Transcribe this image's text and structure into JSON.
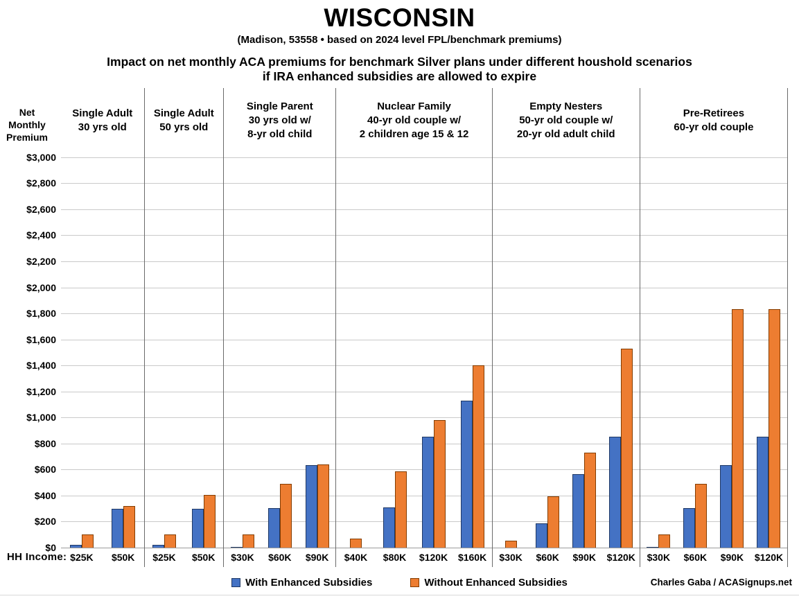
{
  "header": {
    "title": "WISCONSIN",
    "subtitle": "(Madison, 53558 • based on 2024 level FPL/benchmark premiums)",
    "heading_line1": "Impact on net monthly ACA premiums for benchmark Silver plans under different houshold scenarios",
    "heading_line2": "if IRA enhanced subsidies are allowed to expire"
  },
  "chart_data": {
    "type": "bar",
    "y_axis_title": "Net\nMonthly\nPremium",
    "ylim": [
      0,
      3000
    ],
    "ytick_step": 200,
    "ytick_labels": [
      "$3,000",
      "$2,800",
      "$2,600",
      "$2,400",
      "$2,200",
      "$2,000",
      "$1,800",
      "$1,600",
      "$1,400",
      "$1,200",
      "$1,000",
      "$800",
      "$600",
      "$400",
      "$200",
      "$0"
    ],
    "grid": true,
    "x_axis_prefix": "HH Income:",
    "series_names": [
      "With Enhanced Subsidies",
      "Without Enhanced Subsidies"
    ],
    "colors": {
      "with_fill": "#4472C4",
      "with_border": "#1F3864",
      "without_fill": "#ED7D31",
      "without_border": "#833C00",
      "gridline": "#C9C9C9",
      "divider": "#6A6A6A"
    },
    "groups": [
      {
        "title": [
          "Single Adult",
          "30 yrs old"
        ],
        "flex": 120,
        "categories": [
          "$25K",
          "$50K"
        ],
        "with_enhanced": [
          20,
          295
        ],
        "without_enhanced": [
          100,
          320
        ]
      },
      {
        "title": [
          "Single Adult",
          "50 yrs old"
        ],
        "flex": 114,
        "categories": [
          "$25K",
          "$50K"
        ],
        "with_enhanced": [
          20,
          295
        ],
        "without_enhanced": [
          100,
          405
        ]
      },
      {
        "title": [
          "Single Parent",
          "30 yrs old w/",
          "8-yr old child"
        ],
        "flex": 162,
        "categories": [
          "$30K",
          "$60K",
          "$90K"
        ],
        "with_enhanced": [
          5,
          305,
          635
        ],
        "without_enhanced": [
          100,
          490,
          640
        ]
      },
      {
        "title": [
          "Nuclear Family",
          "40-yr old couple w/",
          "2 children age 15 & 12"
        ],
        "flex": 225,
        "categories": [
          "$40K",
          "$80K",
          "$120K",
          "$160K"
        ],
        "with_enhanced": [
          0,
          310,
          850,
          1130
        ],
        "without_enhanced": [
          70,
          585,
          980,
          1400
        ]
      },
      {
        "title": [
          "Empty Nesters",
          "50-yr old couple w/",
          "20-yr old adult child"
        ],
        "flex": 213,
        "categories": [
          "$30K",
          "$60K",
          "$90K",
          "$120K"
        ],
        "with_enhanced": [
          0,
          185,
          565,
          850
        ],
        "without_enhanced": [
          50,
          395,
          730,
          1530
        ]
      },
      {
        "title": [
          "Pre-Retirees",
          "60-yr old couple"
        ],
        "flex": 213,
        "categories": [
          "$30K",
          "$60K",
          "$90K",
          "$120K"
        ],
        "with_enhanced": [
          5,
          305,
          635,
          850
        ],
        "without_enhanced": [
          100,
          490,
          1830,
          1830
        ]
      }
    ]
  },
  "legend": [
    {
      "label": "With Enhanced Subsidies",
      "color": "#4472C4"
    },
    {
      "label": "Without Enhanced Subsidies",
      "color": "#ED7D31"
    }
  ],
  "credit": "Charles Gaba / ACASignups.net"
}
